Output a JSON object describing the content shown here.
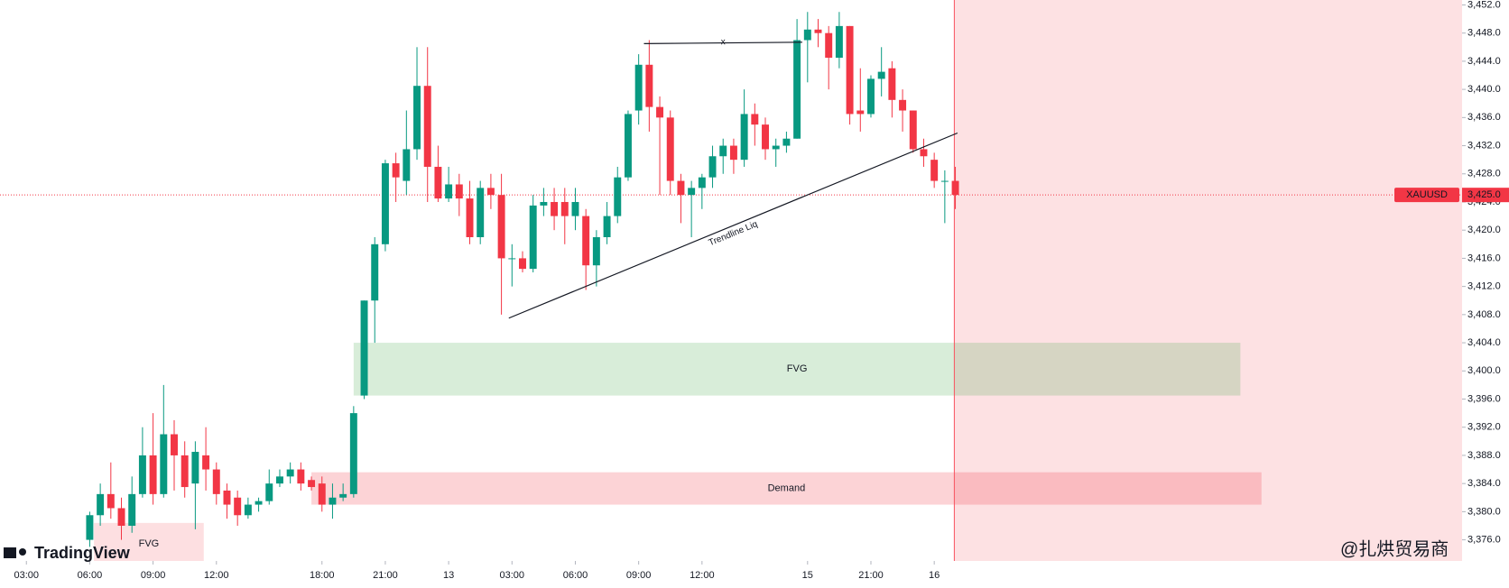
{
  "chart_data": {
    "type": "candlestick",
    "symbol": "XAUUSD",
    "up_color": "#089981",
    "down_color": "#f23645",
    "open": [
      3376,
      3379.5,
      3382.5,
      3380.5,
      3378,
      3382.5,
      3388,
      3382.5,
      3391,
      3388,
      3384,
      3388,
      3386,
      3383,
      3382,
      3379.5,
      3381,
      3381.5,
      3384,
      3385,
      3386,
      3384.5,
      3384,
      3381,
      3382,
      3382.5,
      3396.5,
      3410,
      3418,
      3429.5,
      3427,
      3431.5,
      3440.5,
      3429,
      3424.5,
      3426.5,
      3424.5,
      3419,
      3426,
      3425,
      3416,
      3416,
      3414.5,
      3423.5,
      3424,
      3424,
      3422,
      3422,
      3415,
      3419,
      3422,
      3427.5,
      3437,
      3443.5,
      3437.5,
      3436,
      3427,
      3425,
      3426,
      3427.5,
      3430.5,
      3432,
      3430,
      3436.5,
      3435,
      3431.5,
      3432,
      3433,
      3447,
      3448.5,
      3448,
      3444.5,
      3449,
      3437,
      3436.5,
      3441.5,
      3443,
      3438.5,
      3437,
      3431.5,
      3430,
      3427,
      3427
    ],
    "high": [
      3380,
      3384,
      3387,
      3382,
      3385,
      3392,
      3394,
      3398,
      3393,
      3390,
      3390,
      3392,
      3387,
      3384,
      3383,
      3382,
      3382,
      3386,
      3386,
      3387,
      3387,
      3385,
      3385,
      3384,
      3384,
      3395,
      3410,
      3419,
      3430,
      3431,
      3437,
      3446,
      3446,
      3432,
      3429,
      3428,
      3427,
      3427,
      3428,
      3428,
      3418,
      3417,
      3425,
      3426,
      3426,
      3426,
      3426,
      3423,
      3420,
      3424,
      3429,
      3437,
      3445,
      3447,
      3439,
      3437,
      3428,
      3427,
      3428,
      3432,
      3433,
      3433,
      3440,
      3438,
      3436,
      3433,
      3434,
      3450,
      3451,
      3450,
      3449,
      3451,
      3449,
      3443,
      3442,
      3446,
      3444,
      3440,
      3437,
      3433,
      3431,
      3428.5,
      3429
    ],
    "low": [
      3375,
      3378,
      3379,
      3376,
      3377,
      3382,
      3381,
      3382,
      3383,
      3382,
      3377.5,
      3383,
      3381,
      3379,
      3378,
      3379,
      3380,
      3381,
      3383.5,
      3384,
      3383,
      3383,
      3380,
      3379,
      3381.5,
      3382,
      3396,
      3404,
      3417,
      3424,
      3425,
      3430,
      3424,
      3424,
      3424,
      3422,
      3418,
      3418,
      3423,
      3408,
      3412,
      3414,
      3414,
      3422,
      3420,
      3418,
      3420,
      3411.5,
      3412,
      3418,
      3421,
      3427,
      3435,
      3434,
      3425,
      3425,
      3421,
      3419,
      3423,
      3426,
      3428,
      3428,
      3429,
      3432,
      3430,
      3429,
      3431,
      3433,
      3441,
      3446,
      3440,
      3443,
      3435,
      3434,
      3436,
      3439,
      3436,
      3434,
      3431,
      3429,
      3426,
      3421,
      3423
    ],
    "close": [
      3379.5,
      3382.5,
      3380.5,
      3378,
      3382.5,
      3388,
      3382.5,
      3391,
      3388,
      3383.5,
      3388.5,
      3386,
      3382.5,
      3381,
      3379.5,
      3381,
      3381.5,
      3384,
      3385,
      3386,
      3384,
      3383.5,
      3381,
      3382,
      3382.5,
      3394,
      3410,
      3418,
      3429.5,
      3427.5,
      3431.5,
      3440.5,
      3429,
      3424.5,
      3426.5,
      3424.5,
      3419,
      3426,
      3425,
      3416,
      3416,
      3414.5,
      3423.5,
      3424,
      3422,
      3422,
      3424,
      3415,
      3419,
      3422,
      3427.5,
      3436.5,
      3443.5,
      3437.5,
      3436,
      3427,
      3425,
      3426,
      3427.5,
      3430.5,
      3432,
      3430,
      3436.5,
      3435,
      3431.5,
      3432,
      3433,
      3447,
      3448.5,
      3448,
      3444.5,
      3449,
      3436.5,
      3436.5,
      3441.5,
      3442.5,
      3438.5,
      3437,
      3431.5,
      3430.5,
      3427,
      3427,
      3425
    ],
    "xlim": [
      -8.5,
      130
    ],
    "xticks": [
      {
        "value": -6,
        "label": "03:00"
      },
      {
        "value": 0,
        "label": "06:00"
      },
      {
        "value": 6,
        "label": "09:00"
      },
      {
        "value": 12,
        "label": "12:00"
      },
      {
        "value": 22,
        "label": "18:00"
      },
      {
        "value": 28,
        "label": "21:00"
      },
      {
        "value": 34,
        "label": "13"
      },
      {
        "value": 40,
        "label": "03:00"
      },
      {
        "value": 46,
        "label": "06:00"
      },
      {
        "value": 52,
        "label": "09:00"
      },
      {
        "value": 58,
        "label": "12:00"
      },
      {
        "value": 68,
        "label": "15"
      },
      {
        "value": 74,
        "label": "21:00"
      },
      {
        "value": 80,
        "label": "16"
      }
    ],
    "ylim": [
      3373,
      3452.7
    ],
    "yticks": [
      {
        "value": 3376,
        "label": "3,376.0"
      },
      {
        "value": 3380,
        "label": "3,380.0"
      },
      {
        "value": 3384,
        "label": "3,384.0"
      },
      {
        "value": 3388,
        "label": "3,388.0"
      },
      {
        "value": 3392,
        "label": "3,392.0"
      },
      {
        "value": 3396,
        "label": "3,396.0"
      },
      {
        "value": 3400,
        "label": "3,400.0"
      },
      {
        "value": 3404,
        "label": "3,404.0"
      },
      {
        "value": 3408,
        "label": "3,408.0"
      },
      {
        "value": 3412,
        "label": "3,412.0"
      },
      {
        "value": 3416,
        "label": "3,416.0"
      },
      {
        "value": 3420,
        "label": "3,420.0"
      },
      {
        "value": 3424,
        "label": "3,424.0"
      },
      {
        "value": 3428,
        "label": "3,428.0"
      },
      {
        "value": 3432,
        "label": "3,432.0"
      },
      {
        "value": 3436,
        "label": "3,436.0"
      },
      {
        "value": 3440,
        "label": "3,440.0"
      },
      {
        "value": 3444,
        "label": "3,444.0"
      },
      {
        "value": 3448,
        "label": "3,448.0"
      },
      {
        "value": 3452,
        "label": "3,452.0"
      }
    ],
    "current_price": {
      "value": 3425,
      "label": "3,425.0"
    },
    "highlight_start": 81.9,
    "zones": [
      {
        "label": "FVG",
        "x": [
          0.4,
          10.8
        ],
        "y": [
          3372.4,
          3378.4
        ],
        "color": "rgba(242,54,69,0.16)"
      },
      {
        "label": "FVG",
        "x": [
          25,
          109
        ],
        "y": [
          3396.5,
          3404
        ],
        "color": "rgba(76,175,80,0.22)"
      },
      {
        "label": "Demand",
        "x": [
          21,
          111
        ],
        "y": [
          3381,
          3385.6
        ],
        "color": "rgba(242,54,69,0.22)"
      }
    ],
    "trendlines": [
      {
        "label": "Trendline Liq",
        "x": [
          39.7,
          82.2
        ],
        "y": [
          3407.5,
          3433.8
        ]
      },
      {
        "label": "x",
        "x": [
          52.5,
          67.5
        ],
        "y": [
          3446.5,
          3446.7
        ]
      }
    ],
    "watermarks": [
      "TradingView",
      "@扎烘贸易商"
    ]
  }
}
